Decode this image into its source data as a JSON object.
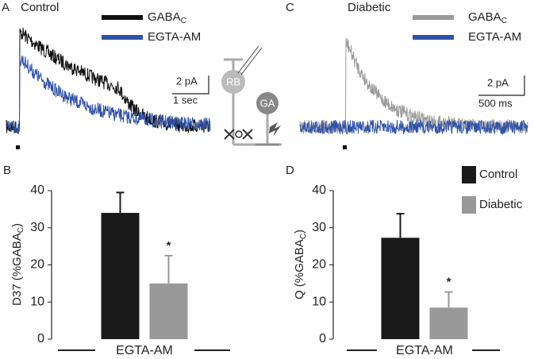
{
  "traces": [
    {
      "panel": "A",
      "title": "Control",
      "legend": [
        {
          "name": "GABA",
          "sub": "C",
          "color": "#111111"
        },
        {
          "name": "EGTA-AM",
          "color": "#2f52a8"
        }
      ],
      "scale_y": "2 pA",
      "scale_x": "1 sec"
    },
    {
      "panel": "C",
      "title": "Diabetic",
      "legend": [
        {
          "name": "GABA",
          "sub": "C",
          "color": "#9a9a9a"
        },
        {
          "name": "EGTA-AM",
          "color": "#2f52a8"
        }
      ],
      "scale_y": "2 pA",
      "scale_x": "500 ms"
    }
  ],
  "schematic": {
    "labels": [
      "RB",
      "GA"
    ]
  },
  "chart_data": [
    {
      "type": "bar",
      "panel": "B",
      "ylabel": {
        "main": "D37 (%GABA",
        "sub": "C",
        "end": ")"
      },
      "categories": [
        "EGTA-AM"
      ],
      "series": [
        {
          "color": "#1a1a1a",
          "values": [
            34
          ],
          "errors": [
            5.5
          ]
        },
        {
          "color": "#999999",
          "values": [
            15
          ],
          "errors": [
            7.5
          ],
          "annotation": "*"
        }
      ],
      "ylim": [
        0,
        40
      ],
      "yticks": [
        0,
        10,
        20,
        30,
        40
      ]
    },
    {
      "type": "bar",
      "panel": "D",
      "ylabel": {
        "main": "Q (%GABA",
        "sub": "C",
        "end": ")"
      },
      "categories": [
        "EGTA-AM"
      ],
      "series": [
        {
          "name": "Control",
          "color": "#1a1a1a",
          "values": [
            27.3
          ],
          "errors": [
            6.5
          ]
        },
        {
          "name": "Diabetic",
          "color": "#999999",
          "values": [
            8.5
          ],
          "errors": [
            4.2
          ],
          "annotation": "*"
        }
      ],
      "ylim": [
        0,
        40
      ],
      "yticks": [
        0,
        10,
        20,
        30,
        40
      ]
    }
  ]
}
